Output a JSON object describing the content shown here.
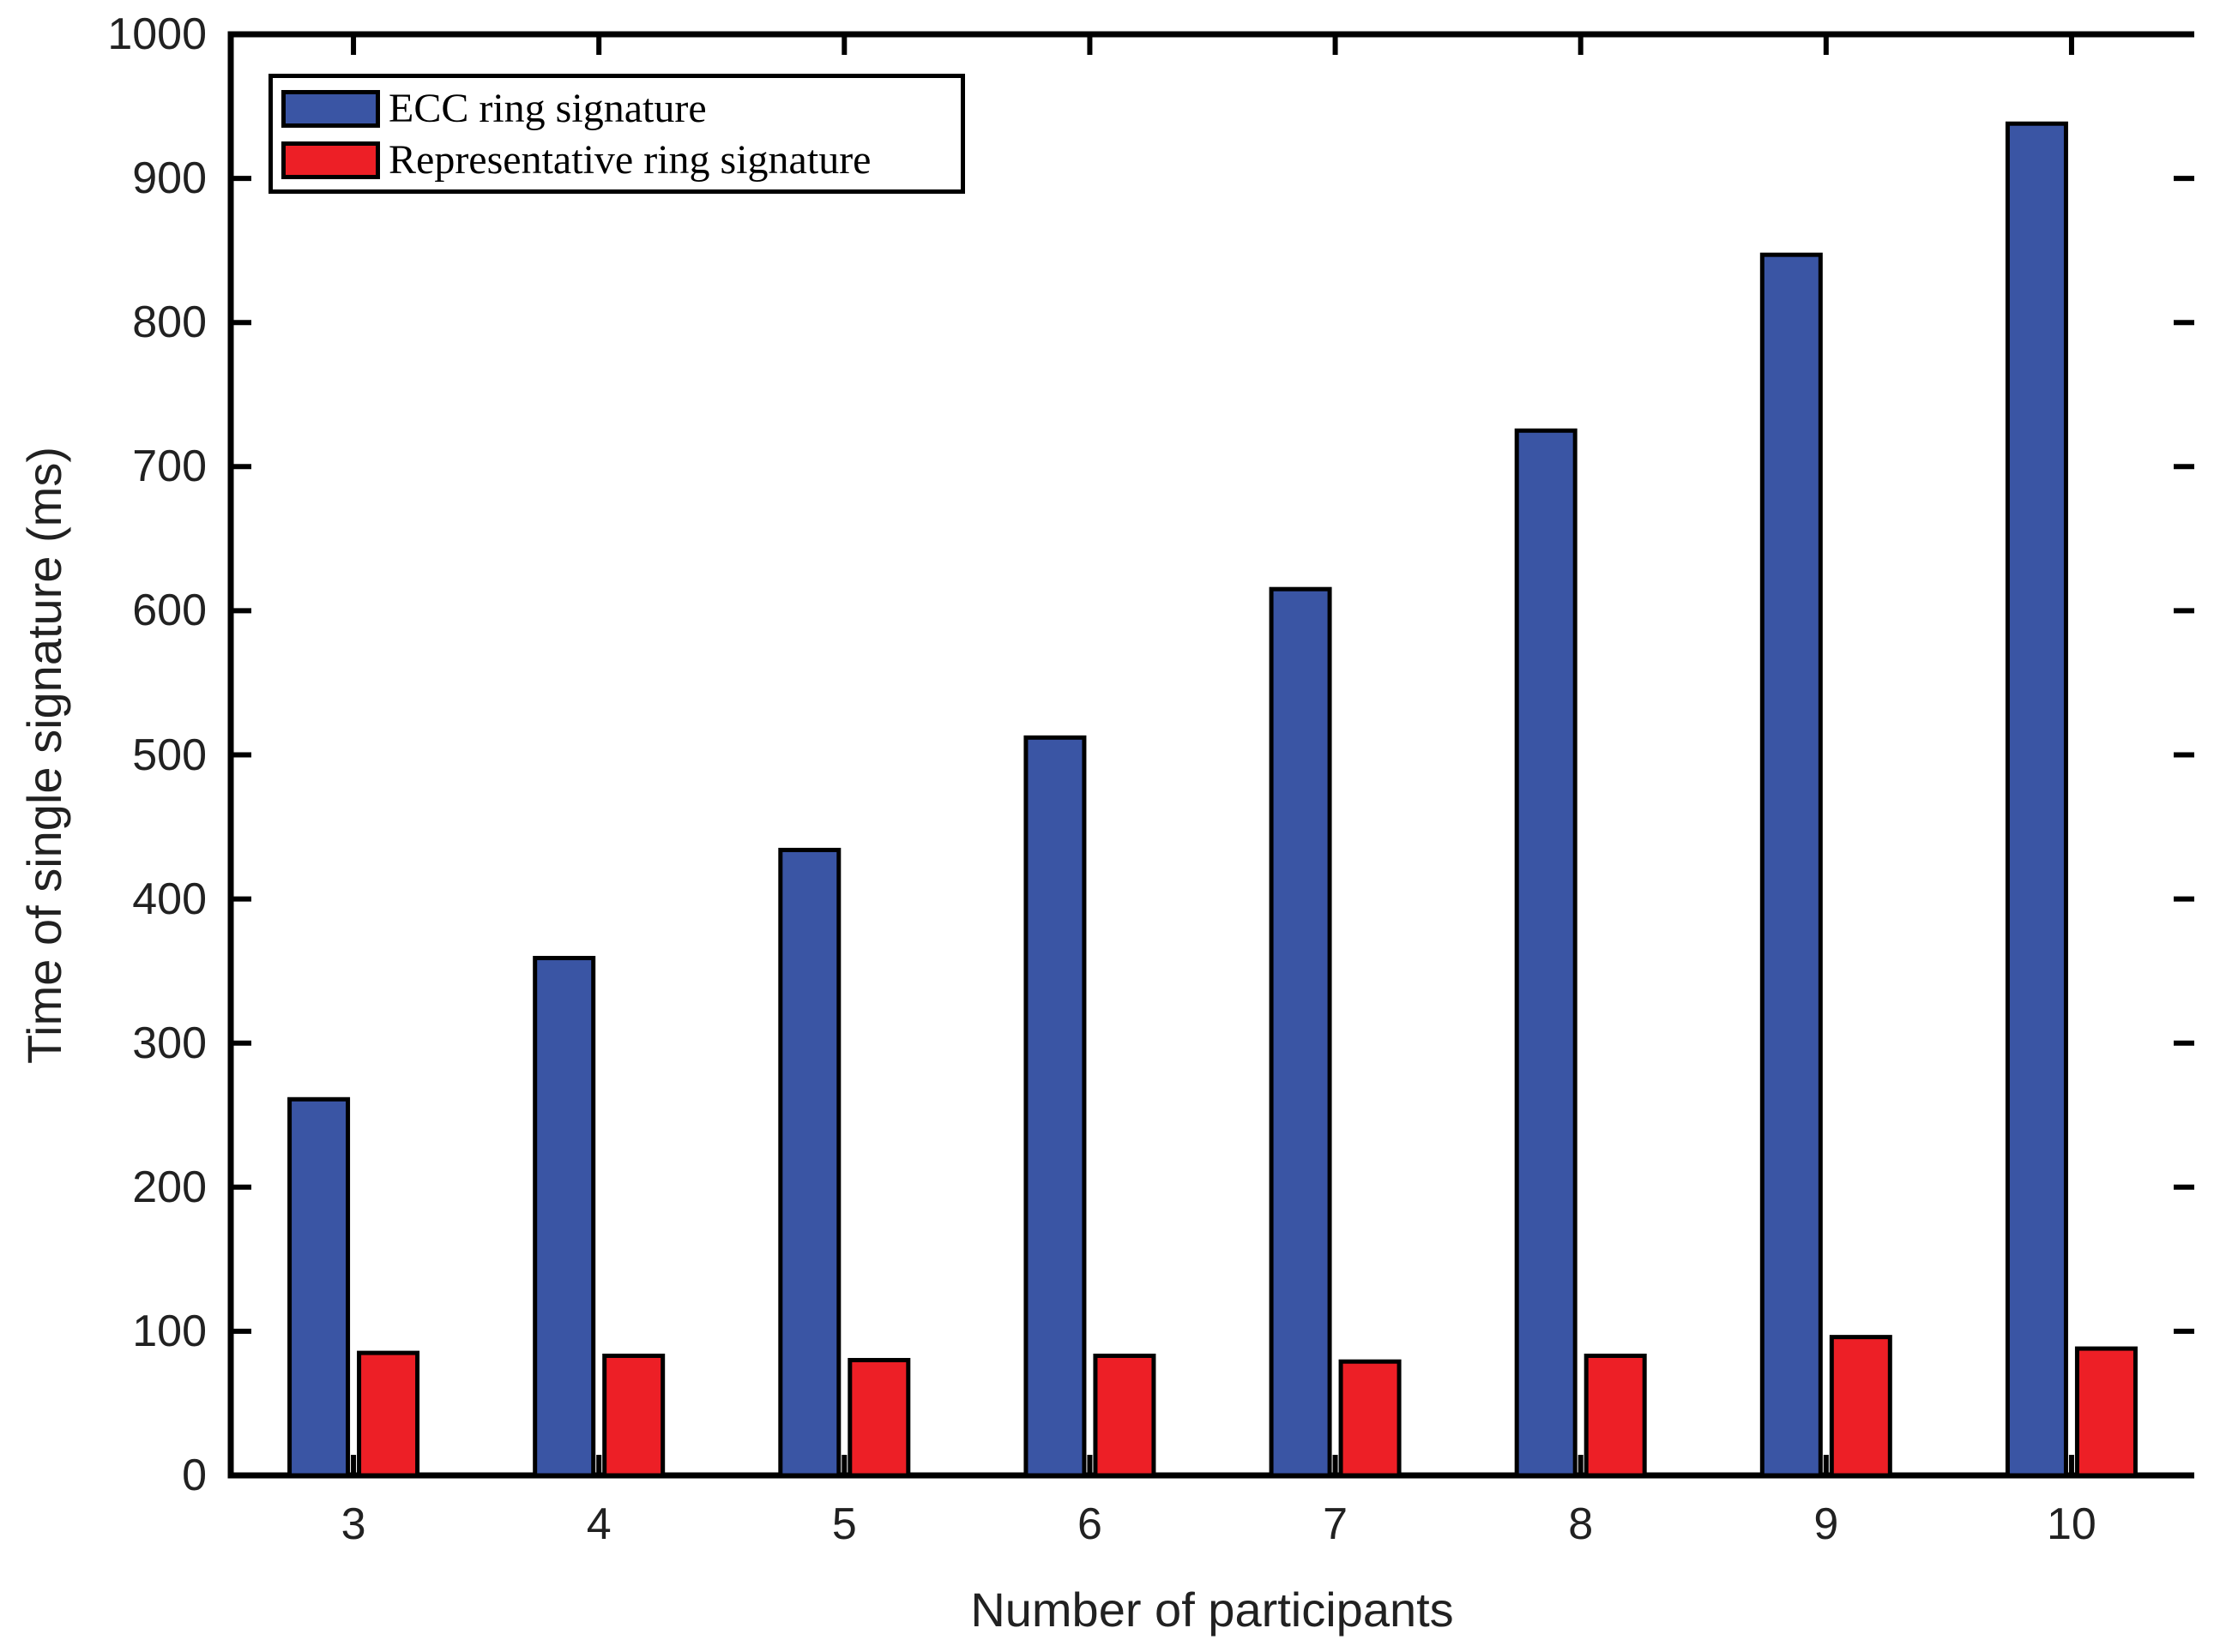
{
  "figure": {
    "background": "#FFFFFF"
  },
  "chart_data": {
    "type": "bar",
    "title": "",
    "xlabel": "Number of participants",
    "ylabel": "Time of single signature (ms)",
    "categories": [
      "3",
      "4",
      "5",
      "6",
      "7",
      "8",
      "9",
      "10"
    ],
    "series": [
      {
        "name": "ECC ring signature",
        "color": "#3A55A4",
        "values": [
          261,
          359,
          434,
          512,
          615,
          725,
          847,
          938
        ]
      },
      {
        "name": "Representative ring signature",
        "color": "#ED1F26",
        "values": [
          85,
          83,
          80,
          83,
          79,
          83,
          96,
          88
        ]
      }
    ],
    "ylim": [
      0,
      1000
    ],
    "yticks": [
      0,
      100,
      200,
      300,
      400,
      500,
      600,
      700,
      800,
      900,
      1000
    ],
    "grid": false,
    "legend_position": "top-left",
    "bar_edge_color": "#000000",
    "axis_color": "#000000",
    "tick_label_color": "#212121"
  }
}
